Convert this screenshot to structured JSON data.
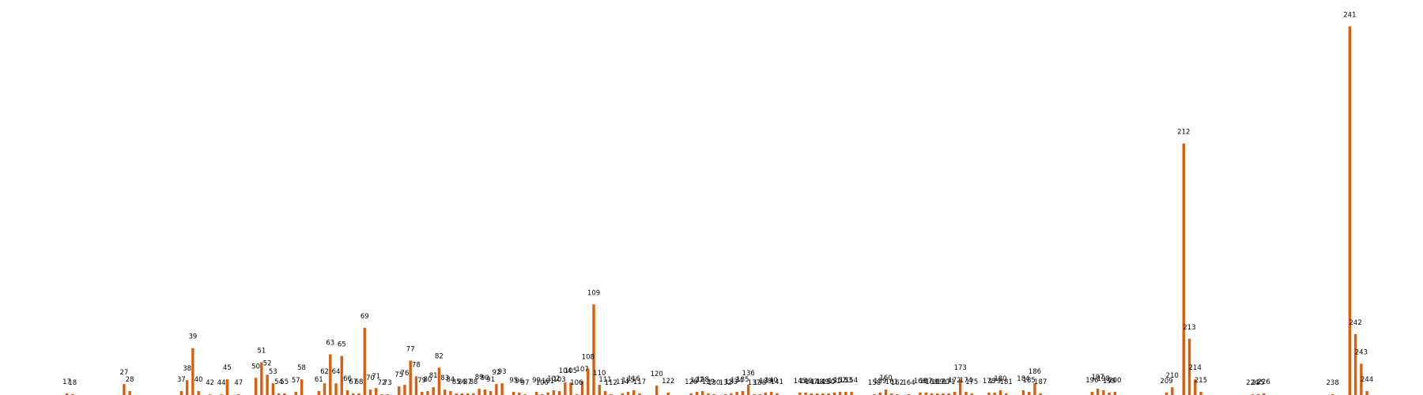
{
  "chart_data": {
    "type": "bar",
    "color": "#d95f0e",
    "grid": false,
    "legend": false,
    "ylim": [
      0,
      245
    ],
    "points": [
      {
        "x": 17,
        "v": 1
      },
      {
        "x": 18,
        "v": 0.5
      },
      {
        "x": 27,
        "v": 7
      },
      {
        "x": 28,
        "v": 2.5
      },
      {
        "x": 37,
        "v": 2.5
      },
      {
        "x": 38,
        "v": 9.5
      },
      {
        "x": 39,
        "v": 30
      },
      {
        "x": 40,
        "v": 2.5
      },
      {
        "x": 42,
        "v": 0.3
      },
      {
        "x": 44,
        "v": 0.5
      },
      {
        "x": 45,
        "v": 10
      },
      {
        "x": 47,
        "v": 0.5
      },
      {
        "x": 50,
        "v": 11
      },
      {
        "x": 51,
        "v": 21
      },
      {
        "x": 52,
        "v": 13
      },
      {
        "x": 53,
        "v": 7.5
      },
      {
        "x": 54,
        "v": 1
      },
      {
        "x": 55,
        "v": 1
      },
      {
        "x": 57,
        "v": 2
      },
      {
        "x": 58,
        "v": 10
      },
      {
        "x": 61,
        "v": 2.5
      },
      {
        "x": 62,
        "v": 7.5
      },
      {
        "x": 63,
        "v": 26
      },
      {
        "x": 64,
        "v": 7.5
      },
      {
        "x": 65,
        "v": 25
      },
      {
        "x": 66,
        "v": 3
      },
      {
        "x": 67,
        "v": 1
      },
      {
        "x": 68,
        "v": 1
      },
      {
        "x": 69,
        "v": 43
      },
      {
        "x": 70,
        "v": 3.5
      },
      {
        "x": 71,
        "v": 4.5
      },
      {
        "x": 72,
        "v": 0.5
      },
      {
        "x": 73,
        "v": 0.5
      },
      {
        "x": 75,
        "v": 5.5
      },
      {
        "x": 76,
        "v": 6.5
      },
      {
        "x": 77,
        "v": 22
      },
      {
        "x": 78,
        "v": 12
      },
      {
        "x": 79,
        "v": 2
      },
      {
        "x": 80,
        "v": 2.5
      },
      {
        "x": 81,
        "v": 5
      },
      {
        "x": 82,
        "v": 17.5
      },
      {
        "x": 83,
        "v": 3.5
      },
      {
        "x": 84,
        "v": 2.5
      },
      {
        "x": 85,
        "v": 1
      },
      {
        "x": 86,
        "v": 1
      },
      {
        "x": 87,
        "v": 1
      },
      {
        "x": 88,
        "v": 1
      },
      {
        "x": 89,
        "v": 4
      },
      {
        "x": 90,
        "v": 3.5
      },
      {
        "x": 91,
        "v": 2.5
      },
      {
        "x": 92,
        "v": 7
      },
      {
        "x": 93,
        "v": 7.5
      },
      {
        "x": 95,
        "v": 2
      },
      {
        "x": 96,
        "v": 1.5
      },
      {
        "x": 97,
        "v": 0.5
      },
      {
        "x": 99,
        "v": 2
      },
      {
        "x": 100,
        "v": 0.5
      },
      {
        "x": 101,
        "v": 1.5
      },
      {
        "x": 102,
        "v": 3
      },
      {
        "x": 103,
        "v": 2.5
      },
      {
        "x": 104,
        "v": 8
      },
      {
        "x": 105,
        "v": 8
      },
      {
        "x": 106,
        "v": 0.5
      },
      {
        "x": 107,
        "v": 9
      },
      {
        "x": 108,
        "v": 17
      },
      {
        "x": 109,
        "v": 58
      },
      {
        "x": 110,
        "v": 6.5
      },
      {
        "x": 111,
        "v": 2.5
      },
      {
        "x": 112,
        "v": 0.5
      },
      {
        "x": 114,
        "v": 1
      },
      {
        "x": 115,
        "v": 2
      },
      {
        "x": 116,
        "v": 3
      },
      {
        "x": 117,
        "v": 1
      },
      {
        "x": 120,
        "v": 6
      },
      {
        "x": 122,
        "v": 1.5
      },
      {
        "x": 126,
        "v": 1
      },
      {
        "x": 127,
        "v": 2
      },
      {
        "x": 128,
        "v": 2.5
      },
      {
        "x": 129,
        "v": 1
      },
      {
        "x": 130,
        "v": 0.5
      },
      {
        "x": 132,
        "v": 0.5
      },
      {
        "x": 133,
        "v": 1
      },
      {
        "x": 134,
        "v": 2
      },
      {
        "x": 135,
        "v": 2.5
      },
      {
        "x": 136,
        "v": 6.5
      },
      {
        "x": 137,
        "v": 0.5
      },
      {
        "x": 138,
        "v": 0.5
      },
      {
        "x": 139,
        "v": 1.5
      },
      {
        "x": 140,
        "v": 2
      },
      {
        "x": 141,
        "v": 1
      },
      {
        "x": 145,
        "v": 1.5
      },
      {
        "x": 146,
        "v": 1.5
      },
      {
        "x": 147,
        "v": 1
      },
      {
        "x": 148,
        "v": 1
      },
      {
        "x": 149,
        "v": 1
      },
      {
        "x": 150,
        "v": 1
      },
      {
        "x": 151,
        "v": 1.5
      },
      {
        "x": 152,
        "v": 2
      },
      {
        "x": 153,
        "v": 2
      },
      {
        "x": 154,
        "v": 2
      },
      {
        "x": 158,
        "v": 0.5
      },
      {
        "x": 159,
        "v": 1.5
      },
      {
        "x": 160,
        "v": 3.5
      },
      {
        "x": 161,
        "v": 1
      },
      {
        "x": 162,
        "v": 0.5
      },
      {
        "x": 164,
        "v": 0.5
      },
      {
        "x": 166,
        "v": 1.5
      },
      {
        "x": 167,
        "v": 1.5
      },
      {
        "x": 168,
        "v": 1
      },
      {
        "x": 169,
        "v": 1
      },
      {
        "x": 170,
        "v": 1
      },
      {
        "x": 171,
        "v": 1
      },
      {
        "x": 172,
        "v": 2
      },
      {
        "x": 173,
        "v": 10
      },
      {
        "x": 174,
        "v": 2
      },
      {
        "x": 175,
        "v": 1
      },
      {
        "x": 178,
        "v": 1.5
      },
      {
        "x": 179,
        "v": 1.5
      },
      {
        "x": 180,
        "v": 3
      },
      {
        "x": 181,
        "v": 1
      },
      {
        "x": 184,
        "v": 3
      },
      {
        "x": 185,
        "v": 2
      },
      {
        "x": 186,
        "v": 7.5
      },
      {
        "x": 187,
        "v": 1
      },
      {
        "x": 196,
        "v": 2
      },
      {
        "x": 197,
        "v": 4
      },
      {
        "x": 198,
        "v": 3
      },
      {
        "x": 199,
        "v": 1.5
      },
      {
        "x": 200,
        "v": 2
      },
      {
        "x": 209,
        "v": 1.5
      },
      {
        "x": 210,
        "v": 5
      },
      {
        "x": 212,
        "v": 161
      },
      {
        "x": 213,
        "v": 36
      },
      {
        "x": 214,
        "v": 10
      },
      {
        "x": 215,
        "v": 2
      },
      {
        "x": 224,
        "v": 0.5
      },
      {
        "x": 225,
        "v": 0.5
      },
      {
        "x": 226,
        "v": 1
      },
      {
        "x": 238,
        "v": 0.5
      },
      {
        "x": 241,
        "v": 236
      },
      {
        "x": 242,
        "v": 39
      },
      {
        "x": 243,
        "v": 20
      },
      {
        "x": 244,
        "v": 2.5
      }
    ]
  }
}
